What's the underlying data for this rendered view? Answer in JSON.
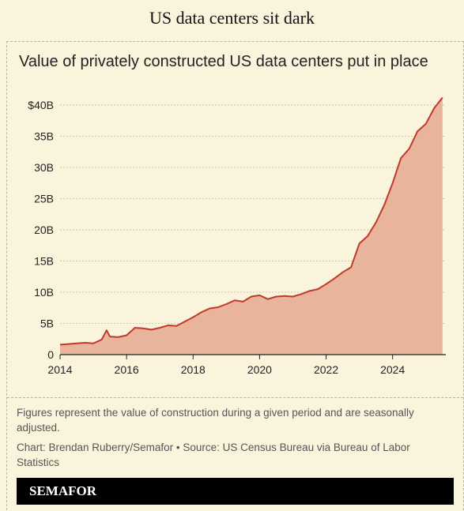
{
  "page": {
    "title": "US data centers sit dark"
  },
  "notes": {
    "figures": "Figures represent the value of construction during a given period and are seasonally adjusted.",
    "credit": "Chart: Brendan Ruberry/Semafor • Source: US Census Bureau via Bureau of Labor Statistics"
  },
  "brand": {
    "name": "SEMAFOR"
  },
  "colors": {
    "line": "#c0392b",
    "fill": "#e9b49c",
    "background": "#fbf4dd"
  },
  "chart_data": {
    "type": "area",
    "title": "Value of privately constructed US data centers put in place",
    "xlabel": "",
    "ylabel": "",
    "xlim": [
      2014,
      2025.6
    ],
    "ylim": [
      0,
      40
    ],
    "x_ticks": [
      "2014",
      "2016",
      "2018",
      "2020",
      "2022",
      "2024"
    ],
    "y_ticks": [
      "0",
      "5B",
      "10B",
      "15B",
      "20B",
      "25B",
      "30B",
      "35B",
      "$40B"
    ],
    "grid": "horizontal-dashed",
    "series": [
      {
        "x": [
          2014.0,
          2014.25,
          2014.5,
          2014.75,
          2015.0,
          2015.25,
          2015.4,
          2015.5,
          2015.75,
          2016.0,
          2016.25,
          2016.5,
          2016.75,
          2017.0,
          2017.25,
          2017.5,
          2017.75,
          2018.0,
          2018.25,
          2018.5,
          2018.75,
          2019.0,
          2019.25,
          2019.5,
          2019.75,
          2020.0,
          2020.25,
          2020.5,
          2020.75,
          2021.0,
          2021.25,
          2021.5,
          2021.75,
          2022.0,
          2022.25,
          2022.5,
          2022.75,
          2023.0,
          2023.25,
          2023.5,
          2023.75,
          2024.0,
          2024.25,
          2024.5,
          2024.75,
          2025.0,
          2025.25,
          2025.5
        ],
        "values": [
          1.6,
          1.7,
          1.8,
          1.9,
          1.8,
          2.4,
          3.9,
          2.9,
          2.8,
          3.1,
          4.3,
          4.2,
          4.0,
          4.3,
          4.7,
          4.6,
          5.3,
          6.0,
          6.8,
          7.4,
          7.6,
          8.1,
          8.7,
          8.5,
          9.3,
          9.5,
          8.9,
          9.3,
          9.4,
          9.3,
          9.7,
          10.2,
          10.5,
          11.3,
          12.2,
          13.2,
          14.0,
          17.8,
          19.0,
          21.2,
          24.0,
          27.5,
          31.5,
          33.0,
          35.8,
          37.0,
          39.5,
          41.2
        ]
      }
    ]
  }
}
